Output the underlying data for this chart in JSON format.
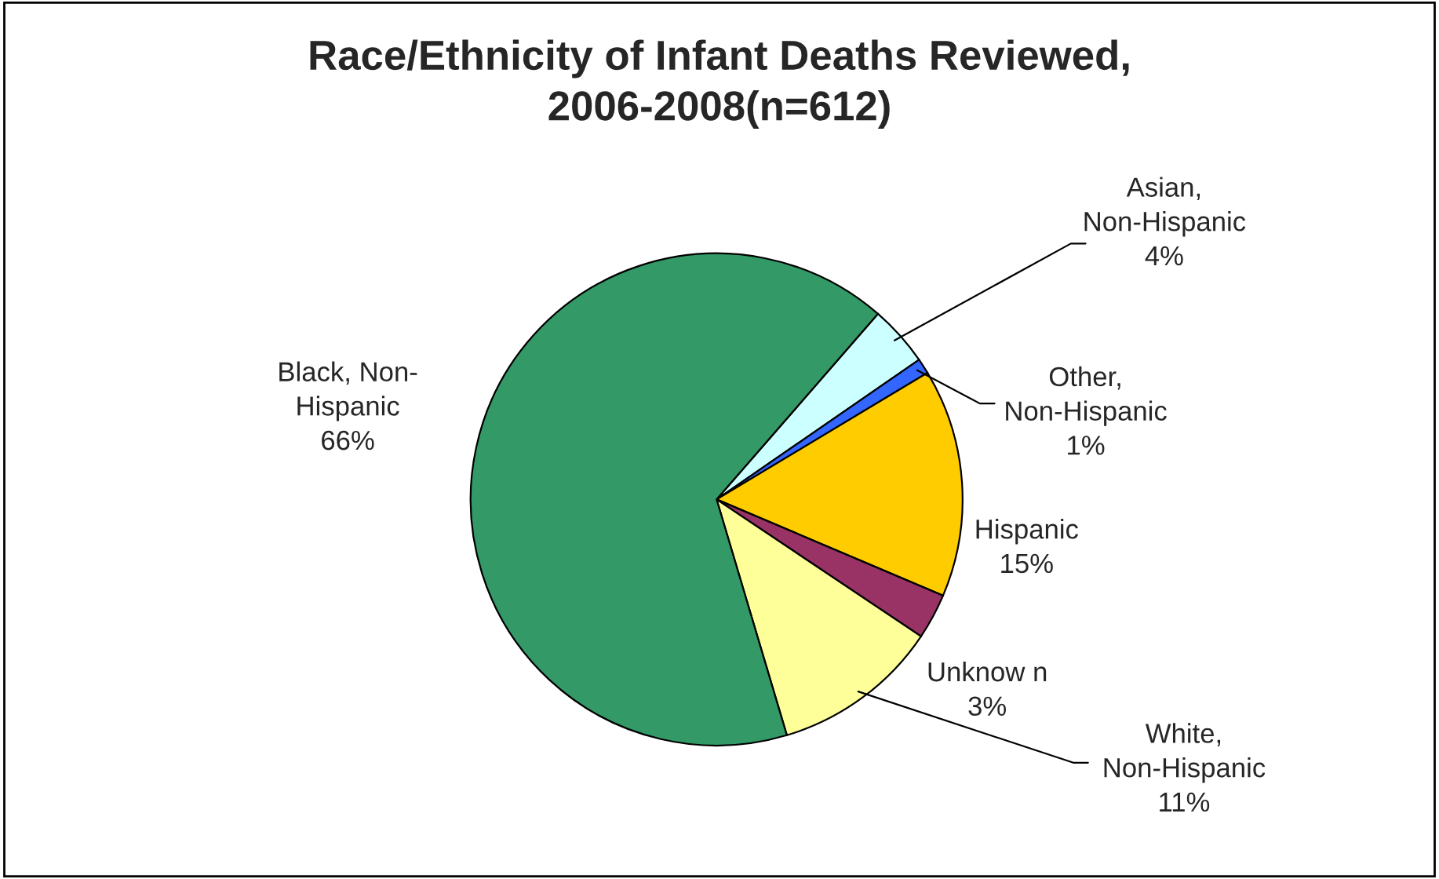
{
  "chart_data": {
    "type": "pie",
    "title": "Race/Ethnicity of Infant Deaths Reviewed,\n2006-2008(n=612)",
    "categories": [
      "Asian,\nNon-Hispanic",
      "Other,\nNon-Hispanic",
      "Hispanic",
      "Unknow n",
      "White,\nNon-Hispanic",
      "Black, Non-\nHispanic"
    ],
    "values": [
      4,
      1,
      15,
      3,
      11,
      66
    ],
    "colors": [
      "#ccffff",
      "#3366ff",
      "#ffcc00",
      "#993366",
      "#ffff99",
      "#339966"
    ],
    "value_labels": [
      "4%",
      "1%",
      "15%",
      "3%",
      "11%",
      "66%"
    ],
    "legend": false
  }
}
